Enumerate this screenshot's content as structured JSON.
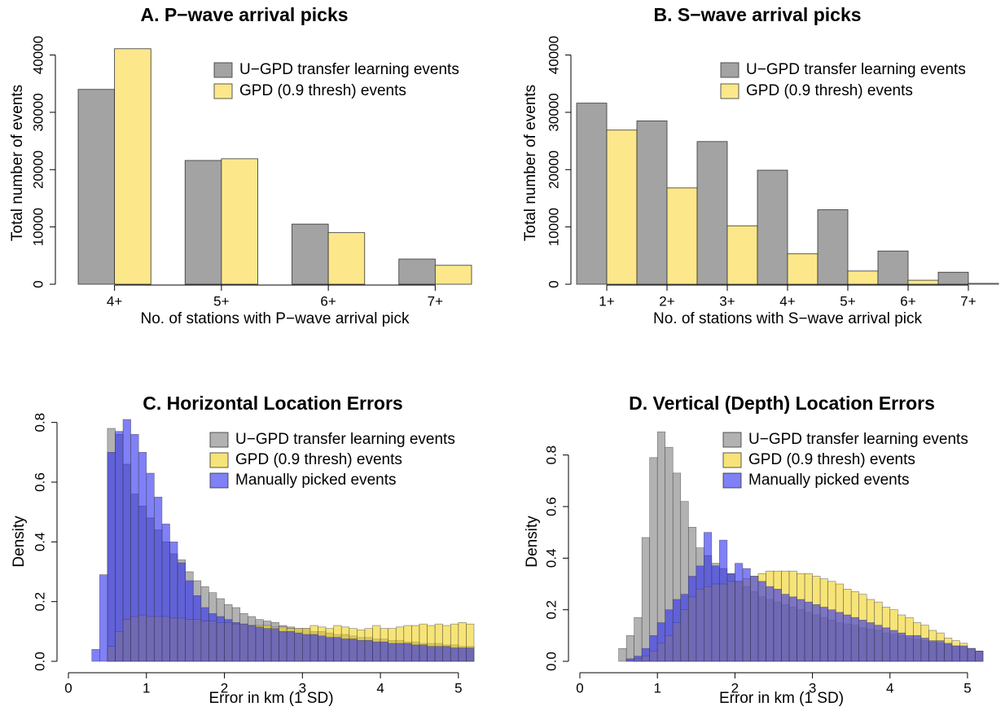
{
  "chart_data": [
    {
      "type": "bar",
      "title": "A. P−wave arrival picks",
      "xlabel": "No. of stations with P−wave arrival pick",
      "ylabel": "Total number of events",
      "categories": [
        "4+",
        "5+",
        "6+",
        "7+"
      ],
      "series": [
        {
          "name": "U−GPD transfer learning events",
          "color": "#a3a3a3",
          "values": [
            34000,
            21600,
            10500,
            4400
          ]
        },
        {
          "name": "GPD (0.9 thresh) events",
          "color": "#fce88a",
          "values": [
            41100,
            21900,
            9000,
            3300
          ]
        }
      ],
      "ylim": [
        0,
        41500
      ],
      "yticks": [
        0,
        10000,
        20000,
        30000,
        40000
      ],
      "legend": "top-right"
    },
    {
      "type": "bar",
      "title": "B. S−wave arrival picks",
      "xlabel": "No. of stations with S−wave arrival pick",
      "ylabel": "Total number of events",
      "categories": [
        "1+",
        "2+",
        "3+",
        "4+",
        "5+",
        "6+",
        "7+"
      ],
      "series": [
        {
          "name": "U−GPD transfer learning events",
          "color": "#a3a3a3",
          "values": [
            31600,
            28500,
            24900,
            19900,
            13000,
            5800,
            2100
          ]
        },
        {
          "name": "GPD (0.9 thresh) events",
          "color": "#fce88a",
          "values": [
            26900,
            16800,
            10200,
            5300,
            2300,
            700,
            150
          ]
        }
      ],
      "ylim": [
        0,
        41500
      ],
      "yticks": [
        0,
        10000,
        20000,
        30000,
        40000
      ],
      "legend": "top-right"
    },
    {
      "type": "histogram",
      "title": "C. Horizontal Location Errors",
      "xlabel": "Error in km (1 SD)",
      "ylabel": "Density",
      "bins": [
        0,
        0.1,
        0.2,
        0.3,
        0.4,
        0.5,
        0.6,
        0.7,
        0.8,
        0.9,
        1,
        1.1,
        1.2,
        1.3,
        1.4,
        1.5,
        1.6,
        1.7,
        1.8,
        1.9,
        2,
        2.1,
        2.2,
        2.3,
        2.4,
        2.5,
        2.6,
        2.7,
        2.8,
        2.9,
        3,
        3.1,
        3.2,
        3.3,
        3.4,
        3.5,
        3.6,
        3.7,
        3.8,
        3.9,
        4,
        4.1,
        4.2,
        4.3,
        4.4,
        4.5,
        4.6,
        4.7,
        4.8,
        4.9,
        5,
        5.1,
        5.2
      ],
      "series": [
        {
          "name": "U−GPD transfer learning events",
          "color": "#7f7f7f",
          "values": [
            0,
            0,
            0,
            0,
            0,
            0.78,
            0.76,
            0.66,
            0.56,
            0.52,
            0.48,
            0.44,
            0.4,
            0.36,
            0.34,
            0.3,
            0.27,
            0.25,
            0.23,
            0.21,
            0.19,
            0.18,
            0.16,
            0.15,
            0.14,
            0.135,
            0.13,
            0.12,
            0.115,
            0.11,
            0.11,
            0.1,
            0.1,
            0.095,
            0.09,
            0.09,
            0.085,
            0.08,
            0.08,
            0.075,
            0.075,
            0.07,
            0.07,
            0.065,
            0.065,
            0.06,
            0.06,
            0.06,
            0.055,
            0.055,
            0.05,
            0.05
          ]
        },
        {
          "name": "GPD (0.9 thresh) events",
          "color": "#f2d21e",
          "values": [
            0,
            0,
            0,
            0,
            0,
            0.05,
            0.1,
            0.14,
            0.15,
            0.155,
            0.15,
            0.15,
            0.15,
            0.145,
            0.145,
            0.14,
            0.14,
            0.135,
            0.135,
            0.13,
            0.13,
            0.125,
            0.125,
            0.12,
            0.12,
            0.12,
            0.115,
            0.115,
            0.11,
            0.11,
            0.11,
            0.12,
            0.115,
            0.11,
            0.12,
            0.115,
            0.11,
            0.105,
            0.11,
            0.12,
            0.11,
            0.11,
            0.115,
            0.12,
            0.12,
            0.125,
            0.12,
            0.125,
            0.12,
            0.125,
            0.13,
            0.125
          ]
        },
        {
          "name": "Manually picked events",
          "color": "#2b2bf2",
          "values": [
            0,
            0,
            0,
            0.04,
            0.29,
            0.7,
            0.77,
            0.81,
            0.76,
            0.7,
            0.63,
            0.55,
            0.46,
            0.4,
            0.33,
            0.27,
            0.22,
            0.18,
            0.16,
            0.15,
            0.14,
            0.13,
            0.125,
            0.12,
            0.115,
            0.11,
            0.11,
            0.1,
            0.1,
            0.095,
            0.09,
            0.09,
            0.085,
            0.08,
            0.08,
            0.075,
            0.075,
            0.07,
            0.07,
            0.065,
            0.065,
            0.06,
            0.06,
            0.06,
            0.055,
            0.055,
            0.05,
            0.05,
            0.05,
            0.045,
            0.045,
            0.045
          ]
        }
      ],
      "xlim": [
        0,
        5.2
      ],
      "xticks": [
        0,
        1,
        2,
        3,
        4,
        5
      ],
      "ylim": [
        0,
        0.81
      ],
      "yticks": [
        {
          "value": 0,
          "label": "0.0"
        },
        {
          "value": 0.2,
          "label": "0.2"
        },
        {
          "value": 0.4,
          "label": "0.4"
        },
        {
          "value": 0.6,
          "label": "0.6"
        },
        {
          "value": 0.8,
          "label": "0.8"
        }
      ],
      "legend": "top-right"
    },
    {
      "type": "histogram",
      "title": "D. Vertical (Depth) Location Errors",
      "xlabel": "Error in km (1 SD)",
      "ylabel": "Density",
      "bins": [
        0,
        0.1,
        0.2,
        0.3,
        0.4,
        0.5,
        0.6,
        0.7,
        0.8,
        0.9,
        1,
        1.1,
        1.2,
        1.3,
        1.4,
        1.5,
        1.6,
        1.7,
        1.8,
        1.9,
        2,
        2.1,
        2.2,
        2.3,
        2.4,
        2.5,
        2.6,
        2.7,
        2.8,
        2.9,
        3,
        3.1,
        3.2,
        3.3,
        3.4,
        3.5,
        3.6,
        3.7,
        3.8,
        3.9,
        4,
        4.1,
        4.2,
        4.3,
        4.4,
        4.5,
        4.6,
        4.7,
        4.8,
        4.9,
        5,
        5.1,
        5.2
      ],
      "series": [
        {
          "name": "U−GPD transfer learning events",
          "color": "#7f7f7f",
          "values": [
            0,
            0,
            0,
            0,
            0,
            0.05,
            0.1,
            0.17,
            0.48,
            0.79,
            0.89,
            0.83,
            0.73,
            0.62,
            0.52,
            0.44,
            0.41,
            0.38,
            0.36,
            0.34,
            0.31,
            0.29,
            0.27,
            0.25,
            0.24,
            0.23,
            0.22,
            0.21,
            0.2,
            0.19,
            0.18,
            0.17,
            0.16,
            0.15,
            0.145,
            0.14,
            0.13,
            0.125,
            0.12,
            0.11,
            0.105,
            0.1,
            0.09,
            0.085,
            0.08,
            0.075,
            0.07,
            0.065,
            0.06,
            0.055,
            0.05,
            0.04
          ]
        },
        {
          "name": "GPD (0.9 thresh) events",
          "color": "#f2d21e",
          "values": [
            0,
            0,
            0,
            0,
            0,
            0,
            0,
            0.01,
            0.02,
            0.04,
            0.07,
            0.1,
            0.15,
            0.2,
            0.25,
            0.28,
            0.29,
            0.3,
            0.3,
            0.31,
            0.31,
            0.32,
            0.33,
            0.34,
            0.35,
            0.35,
            0.35,
            0.35,
            0.34,
            0.34,
            0.33,
            0.32,
            0.31,
            0.3,
            0.28,
            0.27,
            0.26,
            0.24,
            0.23,
            0.21,
            0.2,
            0.18,
            0.17,
            0.15,
            0.14,
            0.12,
            0.11,
            0.09,
            0.08,
            0.07,
            0.05,
            0.04
          ]
        },
        {
          "name": "Manually picked events",
          "color": "#2b2bf2",
          "values": [
            0,
            0,
            0,
            0,
            0,
            0,
            0.01,
            0.02,
            0.05,
            0.1,
            0.15,
            0.2,
            0.24,
            0.26,
            0.33,
            0.37,
            0.5,
            0.37,
            0.47,
            0.34,
            0.38,
            0.36,
            0.33,
            0.31,
            0.29,
            0.28,
            0.26,
            0.25,
            0.24,
            0.23,
            0.22,
            0.21,
            0.2,
            0.19,
            0.18,
            0.17,
            0.16,
            0.15,
            0.14,
            0.13,
            0.12,
            0.11,
            0.1,
            0.1,
            0.09,
            0.08,
            0.08,
            0.07,
            0.06,
            0.06,
            0.05,
            0.04
          ]
        }
      ],
      "xlim": [
        0,
        5.2
      ],
      "xticks": [
        0,
        1,
        2,
        3,
        4,
        5
      ],
      "ylim": [
        0,
        0.9
      ],
      "yticks": [
        {
          "value": 0,
          "label": "0.0"
        },
        {
          "value": 0.2,
          "label": "0.2"
        },
        {
          "value": 0.4,
          "label": "0.4"
        },
        {
          "value": 0.6,
          "label": "0.6"
        },
        {
          "value": 0.8,
          "label": "0.8"
        }
      ],
      "legend": "top-right"
    }
  ]
}
